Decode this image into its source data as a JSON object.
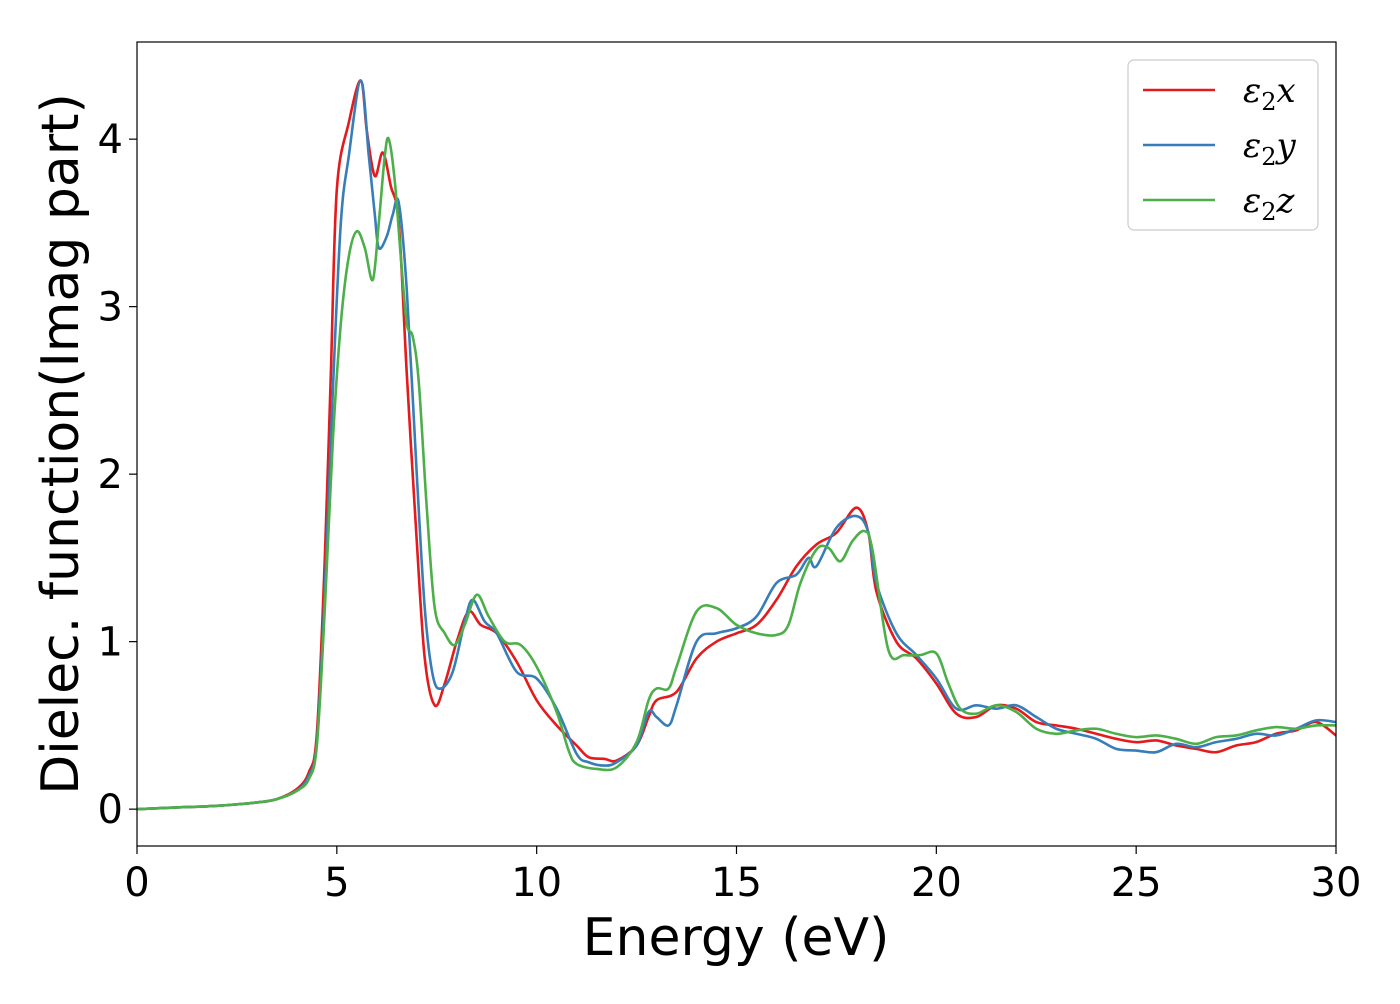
{
  "chart_data": {
    "type": "line",
    "title": "",
    "xlabel": "Energy (eV)",
    "ylabel": "Dielec. function(Imag part)",
    "xlim": [
      0,
      30
    ],
    "ylim": [
      -0.22,
      4.58
    ],
    "xticks": [
      0,
      5,
      10,
      15,
      20,
      25,
      30
    ],
    "yticks": [
      0,
      1,
      2,
      3,
      4
    ],
    "grid": false,
    "legend_position": "top-right",
    "series": [
      {
        "name": "ε₂x",
        "legend_base": "ε",
        "legend_sub": "2",
        "legend_suffix": "x",
        "color": "#e41a1c",
        "points": [
          [
            0,
            0.0
          ],
          [
            1,
            0.01
          ],
          [
            2,
            0.02
          ],
          [
            3,
            0.04
          ],
          [
            3.5,
            0.06
          ],
          [
            4,
            0.12
          ],
          [
            4.3,
            0.22
          ],
          [
            4.5,
            0.45
          ],
          [
            4.7,
            1.5
          ],
          [
            4.85,
            2.6
          ],
          [
            5,
            3.7
          ],
          [
            5.3,
            4.1
          ],
          [
            5.6,
            4.35
          ],
          [
            5.75,
            4.05
          ],
          [
            5.95,
            3.78
          ],
          [
            6.15,
            3.92
          ],
          [
            6.35,
            3.72
          ],
          [
            6.55,
            3.5
          ],
          [
            6.75,
            2.6
          ],
          [
            7,
            1.6
          ],
          [
            7.2,
            0.9
          ],
          [
            7.45,
            0.62
          ],
          [
            7.7,
            0.75
          ],
          [
            8,
            1.0
          ],
          [
            8.3,
            1.18
          ],
          [
            8.6,
            1.1
          ],
          [
            9,
            1.05
          ],
          [
            9.5,
            0.88
          ],
          [
            10,
            0.65
          ],
          [
            10.5,
            0.5
          ],
          [
            11,
            0.38
          ],
          [
            11.3,
            0.31
          ],
          [
            11.7,
            0.3
          ],
          [
            12,
            0.29
          ],
          [
            12.5,
            0.38
          ],
          [
            12.8,
            0.55
          ],
          [
            13,
            0.65
          ],
          [
            13.5,
            0.7
          ],
          [
            14,
            0.9
          ],
          [
            14.5,
            1.0
          ],
          [
            15,
            1.05
          ],
          [
            15.5,
            1.1
          ],
          [
            16,
            1.25
          ],
          [
            16.5,
            1.45
          ],
          [
            17,
            1.58
          ],
          [
            17.5,
            1.65
          ],
          [
            18,
            1.8
          ],
          [
            18.3,
            1.65
          ],
          [
            18.5,
            1.3
          ],
          [
            19,
            1.0
          ],
          [
            19.5,
            0.9
          ],
          [
            20,
            0.75
          ],
          [
            20.5,
            0.57
          ],
          [
            21,
            0.55
          ],
          [
            21.5,
            0.62
          ],
          [
            22,
            0.6
          ],
          [
            22.5,
            0.52
          ],
          [
            23,
            0.5
          ],
          [
            23.5,
            0.48
          ],
          [
            24,
            0.45
          ],
          [
            24.5,
            0.42
          ],
          [
            25,
            0.4
          ],
          [
            25.5,
            0.41
          ],
          [
            26,
            0.38
          ],
          [
            26.5,
            0.36
          ],
          [
            27,
            0.34
          ],
          [
            27.5,
            0.38
          ],
          [
            28,
            0.4
          ],
          [
            28.5,
            0.45
          ],
          [
            29,
            0.47
          ],
          [
            29.5,
            0.52
          ],
          [
            30,
            0.44
          ]
        ]
      },
      {
        "name": "ε₂y",
        "legend_base": "ε",
        "legend_sub": "2",
        "legend_suffix": "y",
        "color": "#377eb8",
        "points": [
          [
            0,
            0.0
          ],
          [
            1,
            0.01
          ],
          [
            2,
            0.02
          ],
          [
            3,
            0.04
          ],
          [
            3.5,
            0.06
          ],
          [
            4,
            0.11
          ],
          [
            4.3,
            0.2
          ],
          [
            4.5,
            0.4
          ],
          [
            4.7,
            1.3
          ],
          [
            4.9,
            2.5
          ],
          [
            5.1,
            3.5
          ],
          [
            5.3,
            3.9
          ],
          [
            5.6,
            4.35
          ],
          [
            5.8,
            3.9
          ],
          [
            5.95,
            3.55
          ],
          [
            6.05,
            3.35
          ],
          [
            6.25,
            3.42
          ],
          [
            6.4,
            3.55
          ],
          [
            6.55,
            3.62
          ],
          [
            6.75,
            3.1
          ],
          [
            7,
            2.0
          ],
          [
            7.2,
            1.2
          ],
          [
            7.4,
            0.8
          ],
          [
            7.6,
            0.72
          ],
          [
            7.9,
            0.82
          ],
          [
            8.2,
            1.12
          ],
          [
            8.4,
            1.25
          ],
          [
            8.7,
            1.12
          ],
          [
            9,
            1.05
          ],
          [
            9.5,
            0.82
          ],
          [
            10,
            0.78
          ],
          [
            10.5,
            0.6
          ],
          [
            11,
            0.33
          ],
          [
            11.3,
            0.28
          ],
          [
            11.7,
            0.26
          ],
          [
            12,
            0.28
          ],
          [
            12.5,
            0.38
          ],
          [
            12.8,
            0.58
          ],
          [
            13,
            0.55
          ],
          [
            13.3,
            0.5
          ],
          [
            13.5,
            0.62
          ],
          [
            14,
            1.0
          ],
          [
            14.5,
            1.05
          ],
          [
            15,
            1.08
          ],
          [
            15.5,
            1.15
          ],
          [
            16,
            1.35
          ],
          [
            16.5,
            1.4
          ],
          [
            16.8,
            1.5
          ],
          [
            17,
            1.45
          ],
          [
            17.5,
            1.68
          ],
          [
            18,
            1.75
          ],
          [
            18.3,
            1.65
          ],
          [
            18.5,
            1.35
          ],
          [
            19,
            1.05
          ],
          [
            19.5,
            0.92
          ],
          [
            20,
            0.78
          ],
          [
            20.5,
            0.6
          ],
          [
            21,
            0.62
          ],
          [
            21.5,
            0.6
          ],
          [
            22,
            0.62
          ],
          [
            22.5,
            0.55
          ],
          [
            23,
            0.48
          ],
          [
            23.5,
            0.45
          ],
          [
            24,
            0.42
          ],
          [
            24.5,
            0.36
          ],
          [
            25,
            0.35
          ],
          [
            25.5,
            0.34
          ],
          [
            26,
            0.39
          ],
          [
            26.5,
            0.37
          ],
          [
            27,
            0.4
          ],
          [
            27.5,
            0.42
          ],
          [
            28,
            0.45
          ],
          [
            28.5,
            0.44
          ],
          [
            29,
            0.48
          ],
          [
            29.5,
            0.53
          ],
          [
            30,
            0.52
          ]
        ]
      },
      {
        "name": "ε₂z",
        "legend_base": "ε",
        "legend_sub": "2",
        "legend_suffix": "z",
        "color": "#4daf4a",
        "points": [
          [
            0,
            0.0
          ],
          [
            1,
            0.01
          ],
          [
            2,
            0.02
          ],
          [
            3,
            0.04
          ],
          [
            3.5,
            0.06
          ],
          [
            4,
            0.11
          ],
          [
            4.3,
            0.18
          ],
          [
            4.5,
            0.38
          ],
          [
            4.7,
            1.2
          ],
          [
            4.9,
            2.2
          ],
          [
            5.1,
            2.9
          ],
          [
            5.3,
            3.3
          ],
          [
            5.5,
            3.45
          ],
          [
            5.7,
            3.35
          ],
          [
            5.9,
            3.16
          ],
          [
            6.05,
            3.5
          ],
          [
            6.2,
            3.9
          ],
          [
            6.3,
            4.0
          ],
          [
            6.45,
            3.75
          ],
          [
            6.6,
            3.3
          ],
          [
            6.75,
            2.9
          ],
          [
            6.9,
            2.82
          ],
          [
            7.05,
            2.55
          ],
          [
            7.25,
            1.8
          ],
          [
            7.45,
            1.2
          ],
          [
            7.7,
            1.05
          ],
          [
            7.95,
            0.98
          ],
          [
            8.2,
            1.1
          ],
          [
            8.5,
            1.28
          ],
          [
            8.8,
            1.15
          ],
          [
            9.2,
            1.0
          ],
          [
            9.6,
            0.98
          ],
          [
            10,
            0.85
          ],
          [
            10.5,
            0.58
          ],
          [
            10.8,
            0.35
          ],
          [
            11,
            0.27
          ],
          [
            11.5,
            0.24
          ],
          [
            12,
            0.25
          ],
          [
            12.5,
            0.4
          ],
          [
            12.8,
            0.65
          ],
          [
            13,
            0.72
          ],
          [
            13.3,
            0.72
          ],
          [
            13.5,
            0.85
          ],
          [
            14,
            1.18
          ],
          [
            14.5,
            1.2
          ],
          [
            15,
            1.1
          ],
          [
            15.5,
            1.05
          ],
          [
            16,
            1.04
          ],
          [
            16.3,
            1.1
          ],
          [
            16.6,
            1.35
          ],
          [
            17,
            1.55
          ],
          [
            17.3,
            1.56
          ],
          [
            17.6,
            1.48
          ],
          [
            17.9,
            1.6
          ],
          [
            18.2,
            1.66
          ],
          [
            18.4,
            1.55
          ],
          [
            18.8,
            0.95
          ],
          [
            19.2,
            0.92
          ],
          [
            19.6,
            0.92
          ],
          [
            20,
            0.93
          ],
          [
            20.3,
            0.75
          ],
          [
            20.6,
            0.6
          ],
          [
            21,
            0.57
          ],
          [
            21.5,
            0.62
          ],
          [
            22,
            0.58
          ],
          [
            22.5,
            0.48
          ],
          [
            23,
            0.45
          ],
          [
            23.5,
            0.47
          ],
          [
            24,
            0.48
          ],
          [
            24.5,
            0.45
          ],
          [
            25,
            0.43
          ],
          [
            25.5,
            0.44
          ],
          [
            26,
            0.42
          ],
          [
            26.5,
            0.39
          ],
          [
            27,
            0.43
          ],
          [
            27.5,
            0.44
          ],
          [
            28,
            0.47
          ],
          [
            28.5,
            0.49
          ],
          [
            29,
            0.48
          ],
          [
            29.5,
            0.5
          ],
          [
            30,
            0.5
          ]
        ]
      }
    ]
  }
}
